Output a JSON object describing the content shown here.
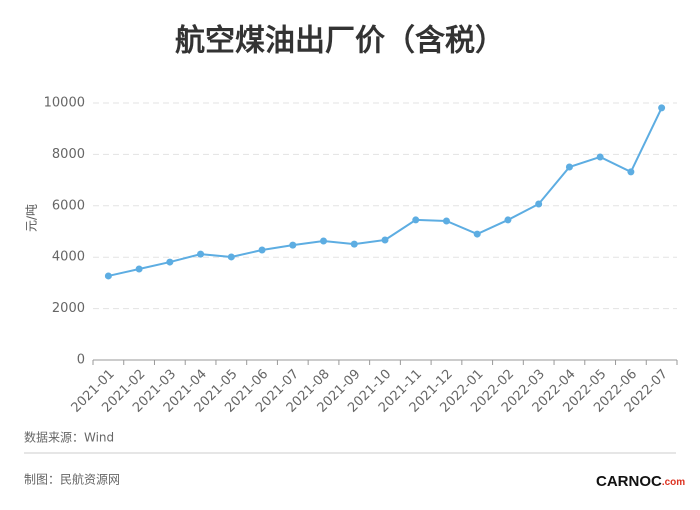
{
  "chart_data": {
    "type": "line",
    "title": "航空煤油出厂价（含税）",
    "y_label": "元/吨",
    "categories": [
      "2021-01",
      "2021-02",
      "2021-03",
      "2021-04",
      "2021-05",
      "2021-06",
      "2021-07",
      "2021-08",
      "2021-09",
      "2021-10",
      "2021-11",
      "2021-12",
      "2022-01",
      "2022-02",
      "2022-03",
      "2022-04",
      "2022-05",
      "2022-06",
      "2022-07"
    ],
    "values": [
      3270,
      3540,
      3810,
      4120,
      4010,
      4280,
      4470,
      4630,
      4510,
      4670,
      5450,
      5410,
      4900,
      5450,
      6070,
      7510,
      7900,
      7320,
      9810
    ],
    "color": "#5dade2",
    "ylim": [
      0,
      10000
    ],
    "yticks": [
      0,
      2000,
      4000,
      6000,
      8000,
      10000
    ],
    "grid": true
  },
  "source": "数据来源：Wind",
  "credit": "制图：民航资源网",
  "logo": {
    "text": "CARNOC",
    "suffix": ".com"
  }
}
